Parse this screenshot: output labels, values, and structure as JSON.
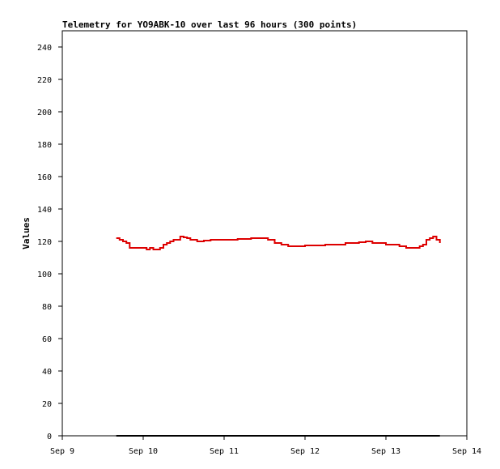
{
  "chart_data": {
    "type": "line",
    "title": "Telemetry for YO9ABK-10 over last 96 hours (300 points)",
    "xlabel": "",
    "ylabel": "Values",
    "x_ticks": [
      "Sep 9",
      "Sep 10",
      "Sep 11",
      "Sep 12",
      "Sep 13",
      "Sep 14"
    ],
    "xlim": [
      "2024-09-09 00:00",
      "2024-09-14 00:00"
    ],
    "ylim": [
      0,
      250
    ],
    "y_ticks": [
      0,
      20,
      40,
      60,
      80,
      100,
      120,
      140,
      160,
      180,
      200,
      220,
      240
    ],
    "grid": false,
    "legend": "none",
    "colors": {
      "series_1": "#dd0000",
      "series_2": "#000000"
    },
    "series": [
      {
        "x": [
          "2024-09-09 16:00",
          "2024-09-09 17:00",
          "2024-09-09 18:00",
          "2024-09-09 19:00",
          "2024-09-09 20:00",
          "2024-09-09 22:00",
          "2024-09-10 00:00",
          "2024-09-10 01:00",
          "2024-09-10 02:00",
          "2024-09-10 03:00",
          "2024-09-10 04:00",
          "2024-09-10 05:00",
          "2024-09-10 06:00",
          "2024-09-10 07:00",
          "2024-09-10 08:00",
          "2024-09-10 09:00",
          "2024-09-10 11:00",
          "2024-09-10 12:00",
          "2024-09-10 13:00",
          "2024-09-10 14:00",
          "2024-09-10 16:00",
          "2024-09-10 18:00",
          "2024-09-10 20:00",
          "2024-09-11 00:00",
          "2024-09-11 04:00",
          "2024-09-11 08:00",
          "2024-09-11 12:00",
          "2024-09-11 13:00",
          "2024-09-11 15:00",
          "2024-09-11 17:00",
          "2024-09-11 19:00",
          "2024-09-11 21:00",
          "2024-09-12 00:00",
          "2024-09-12 06:00",
          "2024-09-12 12:00",
          "2024-09-12 16:00",
          "2024-09-12 18:00",
          "2024-09-12 20:00",
          "2024-09-13 00:00",
          "2024-09-13 02:00",
          "2024-09-13 04:00",
          "2024-09-13 06:00",
          "2024-09-13 08:00",
          "2024-09-13 10:00",
          "2024-09-13 11:00",
          "2024-09-13 12:00",
          "2024-09-13 13:00",
          "2024-09-13 14:00",
          "2024-09-13 15:00",
          "2024-09-13 16:00"
        ],
        "values": [
          122,
          121,
          120,
          119,
          116,
          116,
          116,
          115,
          116,
          115,
          115,
          116,
          118,
          119,
          120,
          121,
          123,
          122.5,
          122,
          121,
          120,
          120.5,
          121,
          121,
          121.5,
          122,
          122,
          121,
          119,
          118,
          117,
          117,
          117.5,
          118,
          119,
          119.5,
          120,
          119,
          118,
          118,
          117,
          116,
          116,
          117,
          118,
          121,
          122,
          123,
          121,
          119
        ]
      },
      {
        "x": [
          "2024-09-09 16:00",
          "2024-09-13 16:00"
        ],
        "values": [
          0,
          0
        ]
      }
    ]
  }
}
